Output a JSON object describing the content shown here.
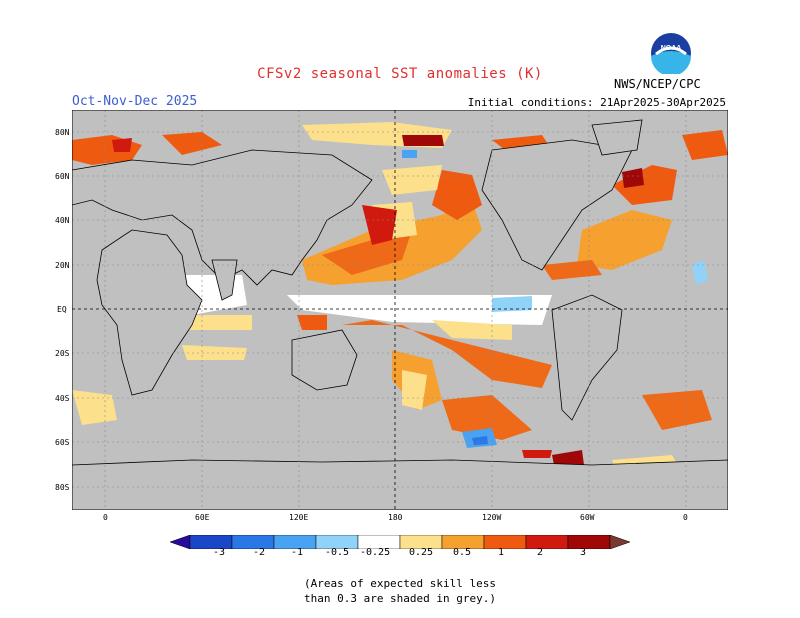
{
  "title": "CFSv2 seasonal SST anomalies (K)",
  "season": "Oct-Nov-Dec 2025",
  "initial_conditions": "Initial conditions: 21Apr2025-30Apr2025",
  "agency": "NWS/NCEP/CPC",
  "logo_text": "NOAA",
  "lat_labels": [
    "80N",
    "60N",
    "40N",
    "20N",
    "EQ",
    "20S",
    "40S",
    "60S",
    "80S"
  ],
  "lon_labels": [
    "0",
    "60E",
    "120E",
    "180",
    "120W",
    "60W",
    "0"
  ],
  "colorbar": {
    "labels": [
      "-3",
      "-2",
      "-1",
      "-0.5",
      "-0.25",
      "0.25",
      "0.5",
      "1",
      "2",
      "3"
    ],
    "colors": [
      "#2a0a9e",
      "#1a46c8",
      "#2a78e6",
      "#4aa2f2",
      "#90d2f8",
      "#ffffff",
      "#fde08c",
      "#f6a030",
      "#ee5a10",
      "#d01a10",
      "#a00808",
      "#7a3a30"
    ]
  },
  "note_line1": "(Areas of expected skill less",
  "note_line2": "than 0.3 are shaded in grey.)"
}
